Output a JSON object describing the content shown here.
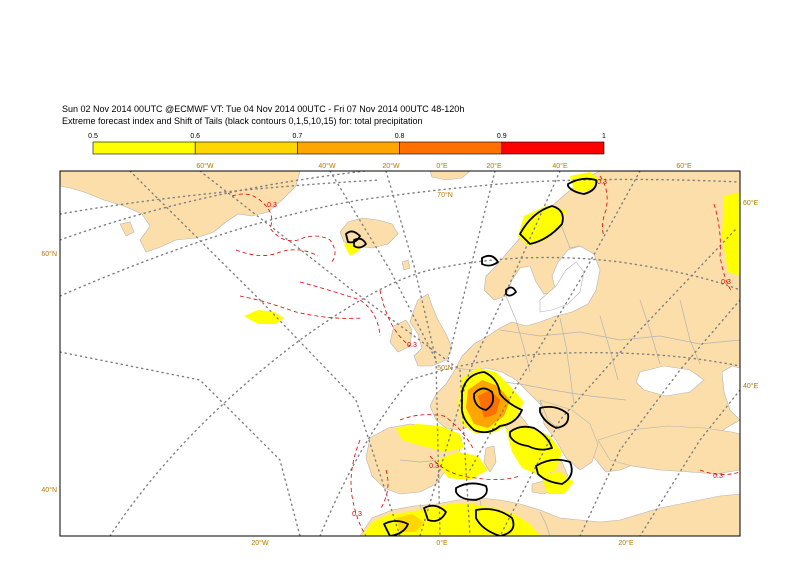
{
  "header": {
    "line1": "Sun 02 Nov 2014 00UTC @ECMWF VT: Tue 04 Nov 2014 00UTC - Fri 07 Nov 2014 00UTC  48-120h",
    "line2": "Extreme forecast index and Shift of Tails (black contours 0,1,5,10,15) for: total precipitation"
  },
  "legend": {
    "ticks": [
      "0.5",
      "0.6",
      "0.7",
      "0.8",
      "0.9",
      "1"
    ],
    "colors": [
      "#ffff00",
      "#ffd700",
      "#ffa500",
      "#ff7000",
      "#ff0000"
    ]
  },
  "map": {
    "top_labels": [
      "60°W",
      "40°W",
      "20°W",
      "0°E",
      "20°E",
      "40°E",
      "60°E"
    ],
    "bottom_labels": [
      "20°W",
      "0°E",
      "20°E"
    ],
    "left_labels": [
      "60°N",
      "40°N"
    ],
    "right_labels": [
      "60°E",
      "40°E"
    ],
    "inner_label": "70°N",
    "inner_label_50": "50°N",
    "contour_label": "0.3",
    "colors": {
      "land": "#fbdeaa",
      "sea": "#ffffff",
      "border": "#b4b4b4",
      "grid": "#808080",
      "label": "#b47800",
      "contour": "#e00000",
      "sot": "#000000"
    }
  }
}
